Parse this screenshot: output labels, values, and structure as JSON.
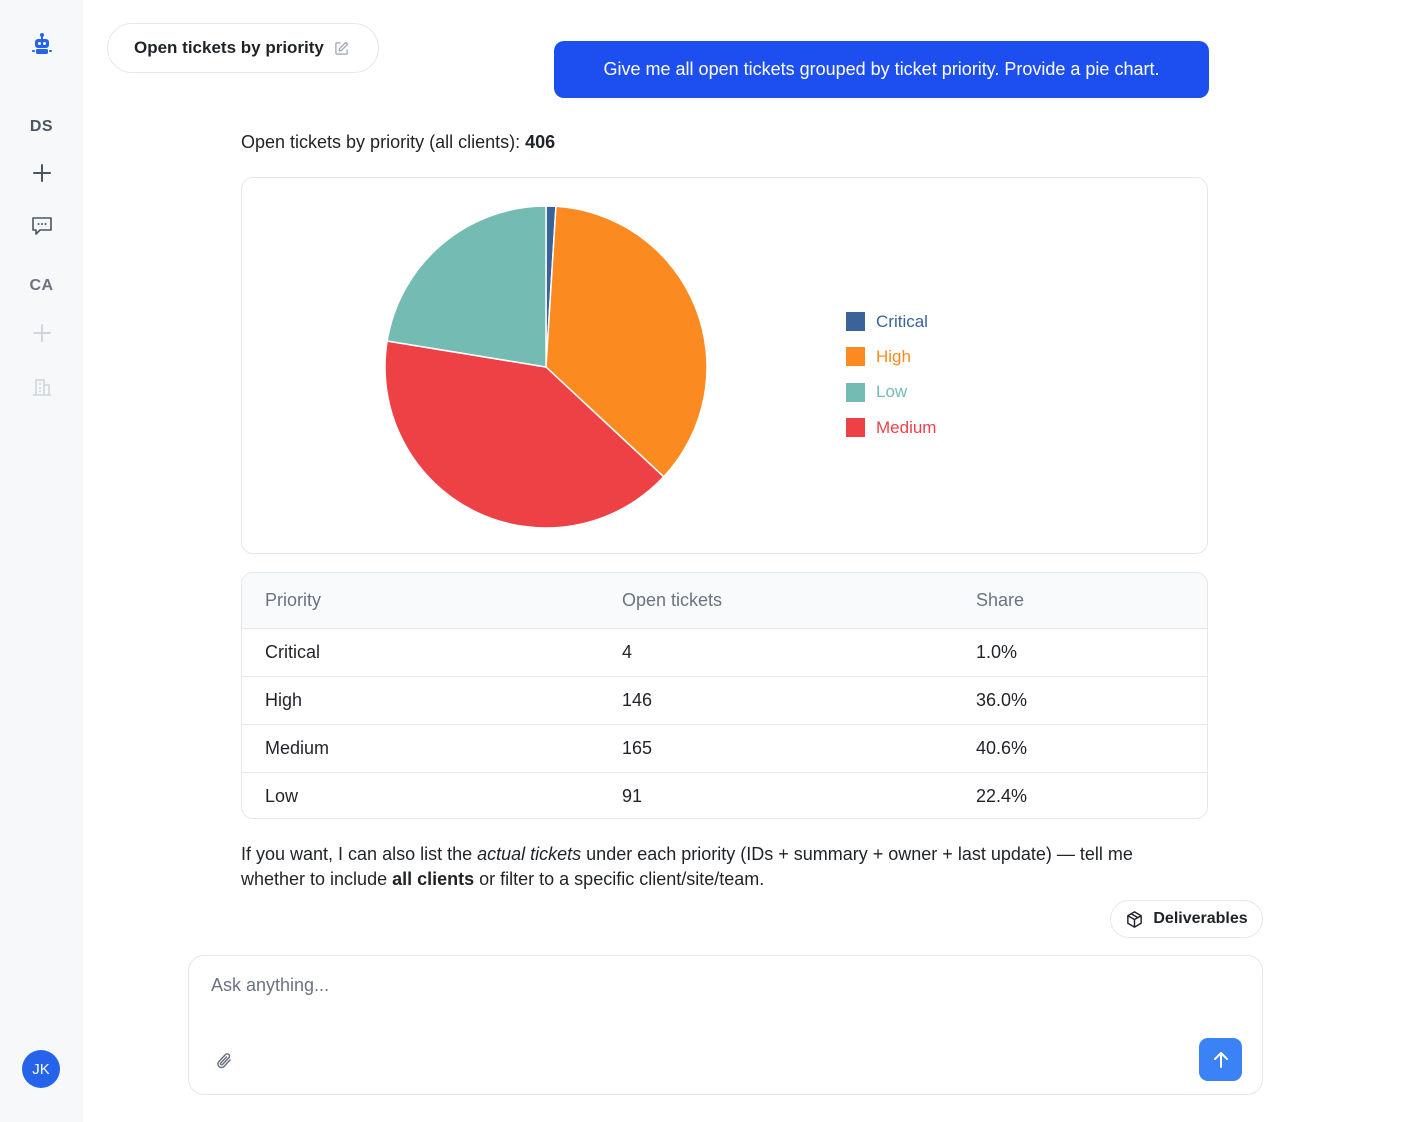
{
  "sidebar": {
    "workspace1": "DS",
    "workspace2": "CA",
    "avatar_initials": "JK"
  },
  "conversation": {
    "title": "Open tickets by priority",
    "user_message": "Give me all open tickets grouped by ticket priority. Provide a pie chart.",
    "summary_prefix": "Open tickets by priority (all clients): ",
    "summary_total": "406"
  },
  "chart_data": {
    "type": "pie",
    "categories": [
      "Critical",
      "High",
      "Low",
      "Medium"
    ],
    "values": [
      4,
      146,
      91,
      165
    ],
    "colors": [
      "#3a6499",
      "#fb8a20",
      "#74bcb3",
      "#ee4146"
    ],
    "title": "",
    "legend": "right"
  },
  "table": {
    "headers": [
      "Priority",
      "Open tickets",
      "Share"
    ],
    "rows": [
      [
        "Critical",
        "4",
        "1.0%"
      ],
      [
        "High",
        "146",
        "36.0%"
      ],
      [
        "Medium",
        "165",
        "40.6%"
      ],
      [
        "Low",
        "91",
        "22.4%"
      ]
    ]
  },
  "followup": {
    "t1": "If you want, I can also list the ",
    "t2": "actual tickets",
    "t3": " under each priority (IDs + summary + owner + last update) — tell me whether to include ",
    "t4": "all clients",
    "t5": " or filter to a specific client/site/team."
  },
  "deliverables_label": "Deliverables",
  "composer": {
    "placeholder": "Ask anything..."
  },
  "colors": {
    "accent": "#1d4ff0",
    "send": "#3b82f6"
  }
}
